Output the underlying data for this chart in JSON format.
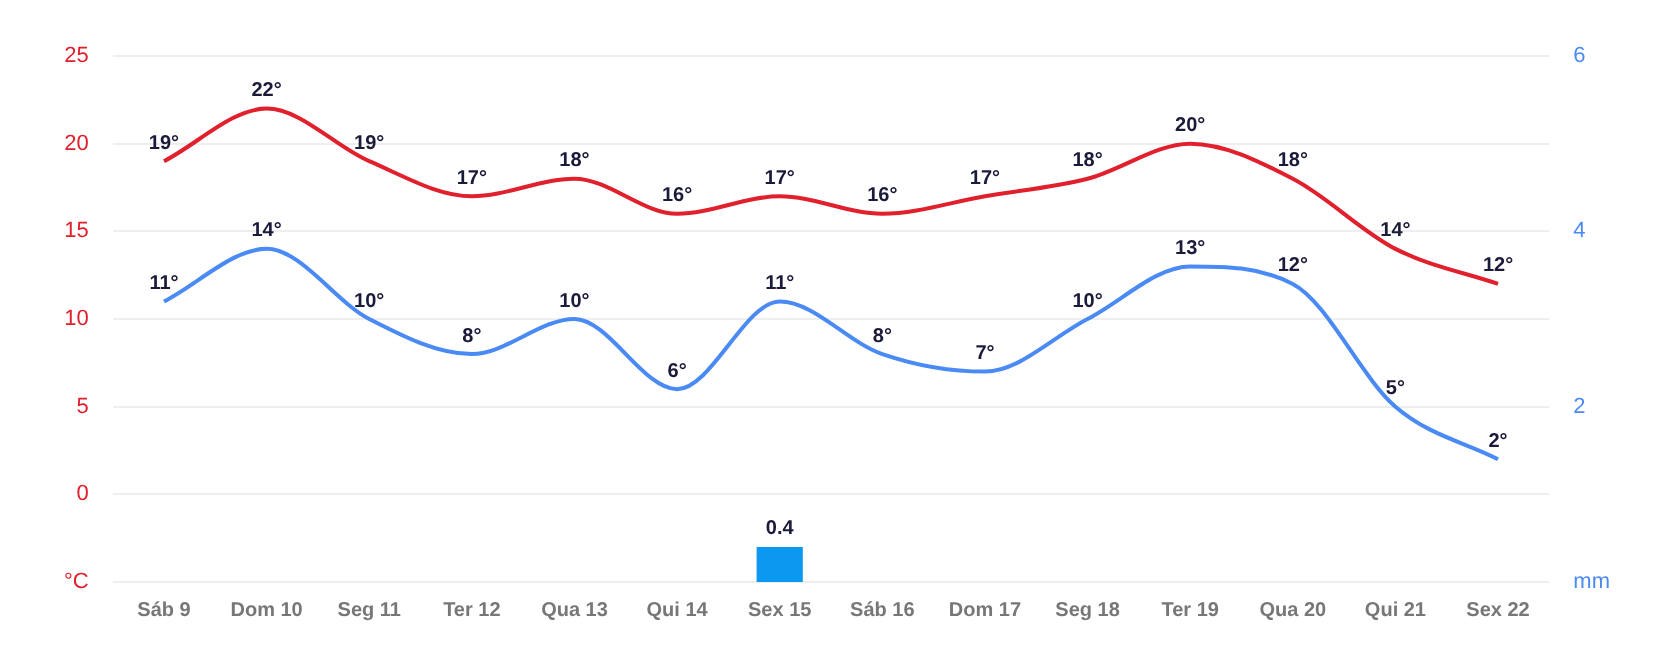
{
  "chart_data": {
    "type": "line",
    "categories": [
      "Sáb 9",
      "Dom 10",
      "Seg 11",
      "Ter 12",
      "Qua 13",
      "Qui 14",
      "Sex 15",
      "Sáb 16",
      "Dom 17",
      "Seg 18",
      "Ter 19",
      "Qua 20",
      "Qui 21",
      "Sex 22"
    ],
    "series": [
      {
        "color": "#e0202c",
        "values": [
          19,
          22,
          19,
          17,
          18,
          16,
          17,
          16,
          17,
          18,
          20,
          18,
          14,
          12
        ],
        "value_labels": [
          "19°",
          "22°",
          "19°",
          "17°",
          "18°",
          "16°",
          "17°",
          "16°",
          "17°",
          "18°",
          "20°",
          "18°",
          "14°",
          "12°"
        ]
      },
      {
        "color": "#4a8af4",
        "values": [
          11,
          14,
          10,
          8,
          10,
          6,
          11,
          8,
          7,
          10,
          13,
          12,
          5,
          2
        ],
        "value_labels": [
          "11°",
          "14°",
          "10°",
          "8°",
          "10°",
          "6°",
          "11°",
          "8°",
          "7°",
          "10°",
          "13°",
          "12°",
          "5°",
          "2°"
        ]
      },
      {
        "type": "bar",
        "axis": "y2",
        "color": "#0a98f0",
        "values": [
          null,
          null,
          null,
          null,
          null,
          null,
          0.4,
          null,
          null,
          null,
          null,
          null,
          null,
          null
        ],
        "value_labels": [
          null,
          null,
          null,
          null,
          null,
          null,
          "0.4",
          null,
          null,
          null,
          null,
          null,
          null,
          null
        ]
      }
    ],
    "ylim": [
      -5,
      25
    ],
    "yticks": [
      {
        "value": -5,
        "label": "°C"
      },
      0,
      5,
      10,
      15,
      20,
      25
    ],
    "y2lim": [
      0,
      6
    ],
    "y2ticks": [
      {
        "value": 0,
        "label": "mm"
      },
      2,
      4,
      6
    ],
    "grid": "y",
    "legend": false,
    "marker": "none"
  }
}
